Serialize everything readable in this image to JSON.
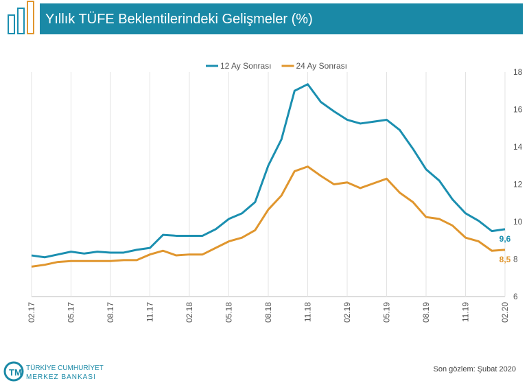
{
  "header": {
    "title": "Yıllık TÜFE Beklentilerindeki Gelişmeler (%)"
  },
  "chart_data": {
    "type": "line",
    "categories": [
      "02.17",
      null,
      null,
      "05.17",
      null,
      null,
      "08.17",
      null,
      null,
      "11.17",
      null,
      null,
      "02.18",
      null,
      null,
      "05.18",
      null,
      null,
      "08.18",
      null,
      null,
      "11.18",
      null,
      null,
      "02.19",
      null,
      null,
      "05.19",
      null,
      null,
      "08.19",
      null,
      null,
      "11.19",
      null,
      null,
      "02.20"
    ],
    "series": [
      {
        "name": "12 Ay Sonrası",
        "color": "#1b8fb0",
        "values": [
          8.2,
          8.1,
          8.25,
          8.4,
          8.3,
          8.4,
          8.35,
          8.35,
          8.5,
          8.6,
          9.3,
          9.25,
          9.25,
          9.25,
          9.6,
          10.15,
          10.45,
          11.05,
          13.0,
          14.4,
          17.0,
          17.35,
          16.4,
          15.9,
          15.45,
          15.25,
          15.35,
          15.45,
          14.9,
          13.9,
          12.8,
          12.2,
          11.2,
          10.45,
          10.05,
          9.5,
          9.6
        ],
        "value_labels": [
          null,
          null,
          null,
          null,
          null,
          null,
          null,
          null,
          null,
          null,
          null,
          null,
          null,
          null,
          null,
          null,
          null,
          null,
          null,
          null,
          null,
          null,
          null,
          null,
          null,
          null,
          null,
          null,
          null,
          null,
          null,
          null,
          null,
          null,
          null,
          null,
          "9,6"
        ]
      },
      {
        "name": "24 Ay Sonrası",
        "color": "#e0962e",
        "values": [
          7.6,
          7.7,
          7.85,
          7.9,
          7.9,
          7.9,
          7.9,
          7.95,
          7.95,
          8.25,
          8.45,
          8.2,
          8.25,
          8.25,
          8.6,
          8.95,
          9.15,
          9.55,
          10.65,
          11.4,
          12.7,
          12.95,
          12.45,
          12.0,
          12.1,
          11.8,
          12.05,
          12.3,
          11.55,
          11.05,
          10.25,
          10.15,
          9.8,
          9.15,
          8.95,
          8.45,
          8.5
        ],
        "value_labels": [
          null,
          null,
          null,
          null,
          null,
          null,
          null,
          null,
          null,
          null,
          null,
          null,
          null,
          null,
          null,
          null,
          null,
          null,
          null,
          null,
          null,
          null,
          null,
          null,
          null,
          null,
          null,
          null,
          null,
          null,
          null,
          null,
          null,
          null,
          null,
          null,
          "8,5"
        ]
      }
    ],
    "ylim": [
      6,
      18
    ],
    "yticks": [
      6,
      8,
      10,
      12,
      14,
      16,
      18
    ],
    "xgrid": true,
    "legend": "top"
  },
  "footer": {
    "bank_line1": "TÜRKİYE CUMHURİYET",
    "bank_line2": "MERKEZ BANKASI",
    "note": "Son gözlem: Şubat 2020"
  }
}
